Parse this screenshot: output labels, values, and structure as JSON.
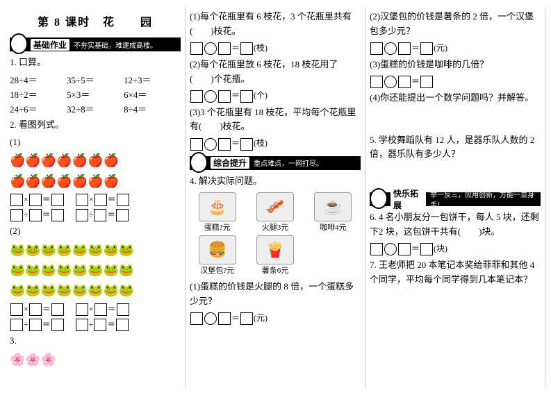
{
  "title": "第 8 课时　花　　园",
  "banners": {
    "basic": {
      "label": "基础作业",
      "motto": "不夯实基础，难建成高楼。",
      "icon": "✎"
    },
    "comp": {
      "label": "综合提升",
      "motto": "重点难点，一网打尽。",
      "icon": "✿"
    },
    "ext": {
      "label": "快乐拓展",
      "motto": "举一反三，应用创新，方能一显身手！",
      "icon": "☘"
    }
  },
  "q1": {
    "heading": "1. 口算。",
    "rows": [
      [
        "28÷4＝",
        "35÷5＝",
        "12÷3＝"
      ],
      [
        "18÷2＝",
        "5×3＝",
        "6×4＝"
      ],
      [
        "24÷6＝",
        "32÷8＝",
        "8÷4＝"
      ]
    ]
  },
  "q2": {
    "heading": "2. 看图列式。",
    "sub1": "(1)",
    "sub2": "(2)"
  },
  "q3": {
    "heading": "3.",
    "p1": "(1)每个花瓶里有 6 枝花，3 个花瓶里共有(　　)枝花。",
    "p1unit": "(枝)",
    "p2": "(2)每个花瓶里放 6 枝花，18 枝花用了(　　)个花瓶。",
    "p2unit": "(个)",
    "p3": "(3)3 个花瓶里有 18 枝花，平均每个花瓶里有(　　)枝花。",
    "p3unit": "(枝)"
  },
  "q4": {
    "heading": "4. 解决实际问题。",
    "foods": [
      {
        "emoji": "🎂",
        "label": "蛋糕?元"
      },
      {
        "emoji": "🥓",
        "label": "火腿3元"
      },
      {
        "emoji": "☕",
        "label": "咖啡4元"
      },
      {
        "emoji": "🍔",
        "label": "汉堡包?元"
      },
      {
        "emoji": "🍟",
        "label": "薯条6元"
      }
    ],
    "p1": "(1)蛋糕的价钱是火腿的 8 倍，一个蛋糕多少元？",
    "unit_yuan": "(元)",
    "p2": "(2)汉堡包的价钱是薯条的 2 倍，一个汉堡包多少元？",
    "p3": "(3)蛋糕的价钱是咖啡的几倍？",
    "p4": "(4)你还能提出一个数学问题吗？并解答。"
  },
  "q5": "5. 学校舞蹈队有 12 人，是器乐队人数的 2 倍，器乐队有多少人？",
  "q6": {
    "text": "6. 4 名小朋友分一包饼干，每人 5 块，还剩下2 块，这包饼干共有(　　)块。",
    "unit": "(块)"
  },
  "q7": "7. 王老师把 20 本笔记本奖给菲菲和其他 4 个同学，平均每个同学得到几本笔记本？"
}
